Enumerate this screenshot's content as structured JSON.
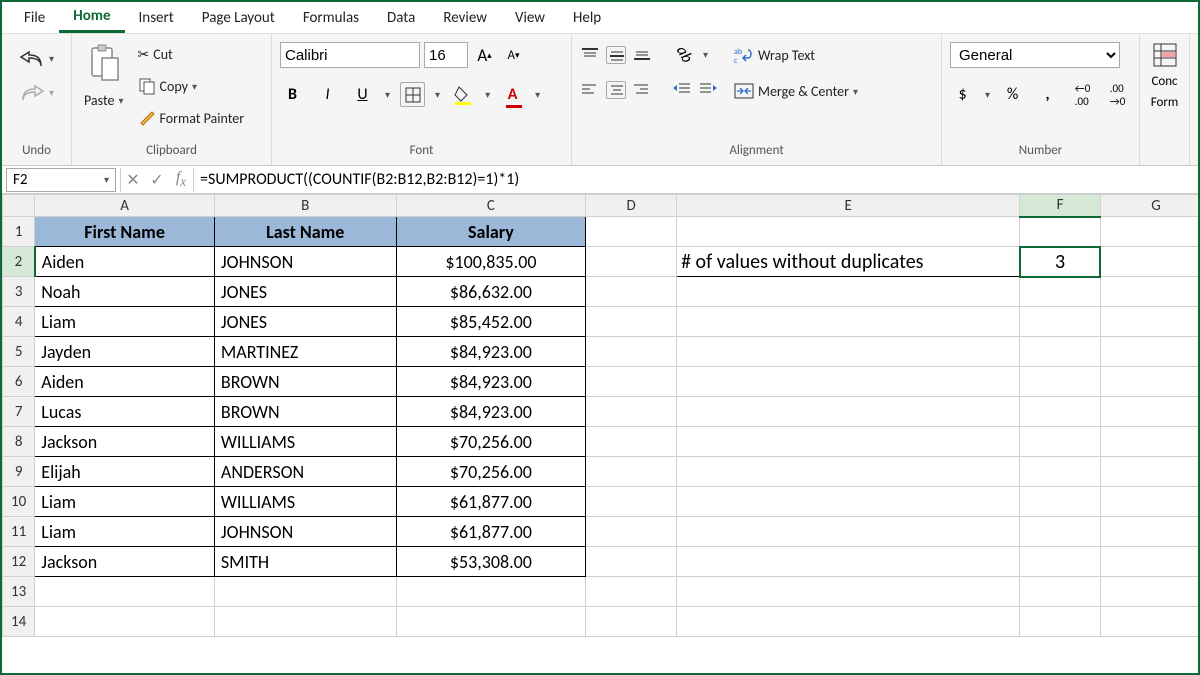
{
  "menu": {
    "items": [
      "File",
      "Home",
      "Insert",
      "Page Layout",
      "Formulas",
      "Data",
      "Review",
      "View",
      "Help"
    ],
    "active": 1
  },
  "ribbon": {
    "undo_label": "Undo",
    "clipboard": {
      "label": "Clipboard",
      "paste": "Paste",
      "cut": "Cut",
      "copy": "Copy",
      "painter": "Format Painter"
    },
    "font": {
      "label": "Font",
      "name": "Calibri",
      "size": "16"
    },
    "alignment": {
      "label": "Alignment",
      "wrap": "Wrap Text",
      "merge": "Merge & Center"
    },
    "number": {
      "label": "Number",
      "format": "General"
    },
    "cond": {
      "line1": "Conc",
      "line2": "Form"
    }
  },
  "formulaBar": {
    "cellRef": "F2",
    "formula": "=SUMPRODUCT((COUNTIF(B2:B12,B2:B12)=1)*1)"
  },
  "columns": [
    "A",
    "B",
    "C",
    "D",
    "E",
    "F",
    "G"
  ],
  "headers": {
    "A": "First Name",
    "B": "Last Name",
    "C": "Salary"
  },
  "rows": [
    {
      "A": "Aiden",
      "B": "JOHNSON",
      "C": "$100,835.00"
    },
    {
      "A": "Noah",
      "B": "JONES",
      "C": "$86,632.00"
    },
    {
      "A": "Liam",
      "B": "JONES",
      "C": "$85,452.00"
    },
    {
      "A": "Jayden",
      "B": "MARTINEZ",
      "C": "$84,923.00"
    },
    {
      "A": "Aiden",
      "B": "BROWN",
      "C": "$84,923.00"
    },
    {
      "A": "Lucas",
      "B": "BROWN",
      "C": "$84,923.00"
    },
    {
      "A": "Jackson",
      "B": "WILLIAMS",
      "C": "$70,256.00"
    },
    {
      "A": "Elijah",
      "B": "ANDERSON",
      "C": "$70,256.00"
    },
    {
      "A": "Liam",
      "B": "WILLIAMS",
      "C": "$61,877.00"
    },
    {
      "A": "Liam",
      "B": "JOHNSON",
      "C": "$61,877.00"
    },
    {
      "A": "Jackson",
      "B": "SMITH",
      "C": "$53,308.00"
    }
  ],
  "e2_label": "# of values without duplicates",
  "f2_value": "3",
  "colors": {
    "accent": "#0f6937",
    "tableHeaderFill": "#9cb8d9",
    "tableBorder": "#000000",
    "gridBorder": "#d0d0d0"
  }
}
